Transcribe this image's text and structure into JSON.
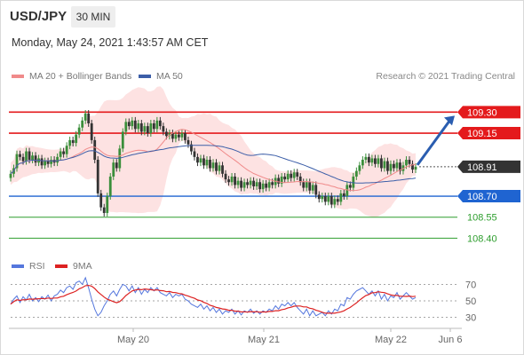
{
  "header": {
    "symbol": "USD/JPY",
    "timeframe": "30 MIN",
    "datetime": "Monday, May 24, 2021 1:43:57 AM CET",
    "copyright": "Research © 2021 Trading Central"
  },
  "legend": {
    "ma20": "MA 20 + Bollinger Bands",
    "ma50": "MA 50",
    "rsi": "RSI",
    "rsi_ma": "9MA"
  },
  "colors": {
    "resistance": "#e41a1c",
    "pivot": "#1f64d1",
    "support": "#2e9e2e",
    "current": "#333333",
    "bull_candle": "#3a8e3a",
    "bear_candle": "#333333",
    "bollinger_fill": "#fde2e2",
    "ma20": "#f08a8a",
    "ma50": "#3c5ea8",
    "rsi_line": "#5577dd",
    "rsi_ma": "#dd2222",
    "arrow": "#2a5db0"
  },
  "chart_data": [
    {
      "type": "candlestick",
      "title": "USD/JPY",
      "ylim": [
        108.32,
        109.41
      ],
      "x_ticks": [
        "May 20",
        "May 21",
        "May 22",
        "Jun 6"
      ],
      "levels": [
        {
          "value": 109.3,
          "label": "109.30",
          "kind": "resistance"
        },
        {
          "value": 109.15,
          "label": "109.15",
          "kind": "resistance"
        },
        {
          "value": 108.91,
          "label": "108.91",
          "kind": "current"
        },
        {
          "value": 108.7,
          "label": "108.70",
          "kind": "pivot"
        },
        {
          "value": 108.55,
          "label": "108.55",
          "kind": "support"
        },
        {
          "value": 108.4,
          "label": "108.40",
          "kind": "support"
        }
      ],
      "close": [
        108.86,
        108.9,
        109.0,
        108.98,
        108.95,
        109.02,
        108.96,
        108.99,
        108.94,
        108.97,
        108.92,
        108.95,
        108.93,
        108.96,
        108.94,
        108.98,
        109.02,
        109.0,
        109.06,
        109.1,
        109.08,
        109.14,
        109.19,
        109.24,
        109.29,
        109.22,
        109.1,
        108.96,
        108.72,
        108.62,
        108.58,
        108.7,
        108.84,
        108.94,
        108.9,
        109.04,
        109.16,
        109.23,
        109.2,
        109.24,
        109.18,
        109.22,
        109.16,
        109.2,
        109.15,
        109.22,
        109.18,
        109.24,
        109.2,
        109.16,
        109.13,
        109.15,
        109.11,
        109.14,
        109.12,
        109.15,
        109.1,
        109.07,
        109.02,
        108.98,
        108.94,
        108.97,
        108.92,
        108.96,
        108.9,
        108.94,
        108.88,
        108.92,
        108.86,
        108.82,
        108.8,
        108.84,
        108.78,
        108.81,
        108.76,
        108.8,
        108.78,
        108.81,
        108.77,
        108.8,
        108.75,
        108.79,
        108.76,
        108.8,
        108.78,
        108.83,
        108.79,
        108.84,
        108.82,
        108.86,
        108.83,
        108.87,
        108.84,
        108.8,
        108.76,
        108.8,
        108.74,
        108.78,
        108.71,
        108.68,
        108.7,
        108.66,
        108.7,
        108.64,
        108.68,
        108.66,
        108.72,
        108.7,
        108.78,
        108.76,
        108.84,
        108.88,
        108.92,
        108.96,
        108.98,
        108.94,
        108.97,
        108.93,
        108.97,
        108.9,
        108.95,
        108.88,
        108.93,
        108.9,
        108.94,
        108.88,
        108.92,
        108.96,
        108.93,
        108.89,
        108.91
      ],
      "rsi": [
        46,
        52,
        56,
        48,
        55,
        51,
        58,
        50,
        54,
        49,
        55,
        52,
        57,
        50,
        56,
        58,
        63,
        60,
        66,
        68,
        64,
        72,
        74,
        70,
        78,
        66,
        52,
        40,
        32,
        36,
        44,
        50,
        58,
        62,
        56,
        64,
        70,
        68,
        62,
        68,
        60,
        66,
        58,
        64,
        60,
        66,
        62,
        66,
        60,
        58,
        56,
        60,
        54,
        58,
        56,
        58,
        52,
        50,
        46,
        44,
        42,
        46,
        40,
        44,
        38,
        42,
        36,
        40,
        34,
        38,
        36,
        40,
        34,
        38,
        33,
        38,
        36,
        40,
        35,
        38,
        34,
        38,
        36,
        40,
        38,
        44,
        40,
        46,
        44,
        48,
        44,
        48,
        42,
        38,
        34,
        40,
        32,
        38,
        32,
        34,
        36,
        32,
        38,
        34,
        40,
        38,
        46,
        44,
        54,
        52,
        58,
        62,
        64,
        66,
        62,
        58,
        62,
        56,
        62,
        52,
        58,
        50,
        56,
        54,
        60,
        52,
        56,
        60,
        56,
        52,
        54
      ],
      "rsi_ticks": [
        70,
        50,
        30
      ],
      "rsi_ylim": [
        21,
        79
      ]
    }
  ]
}
